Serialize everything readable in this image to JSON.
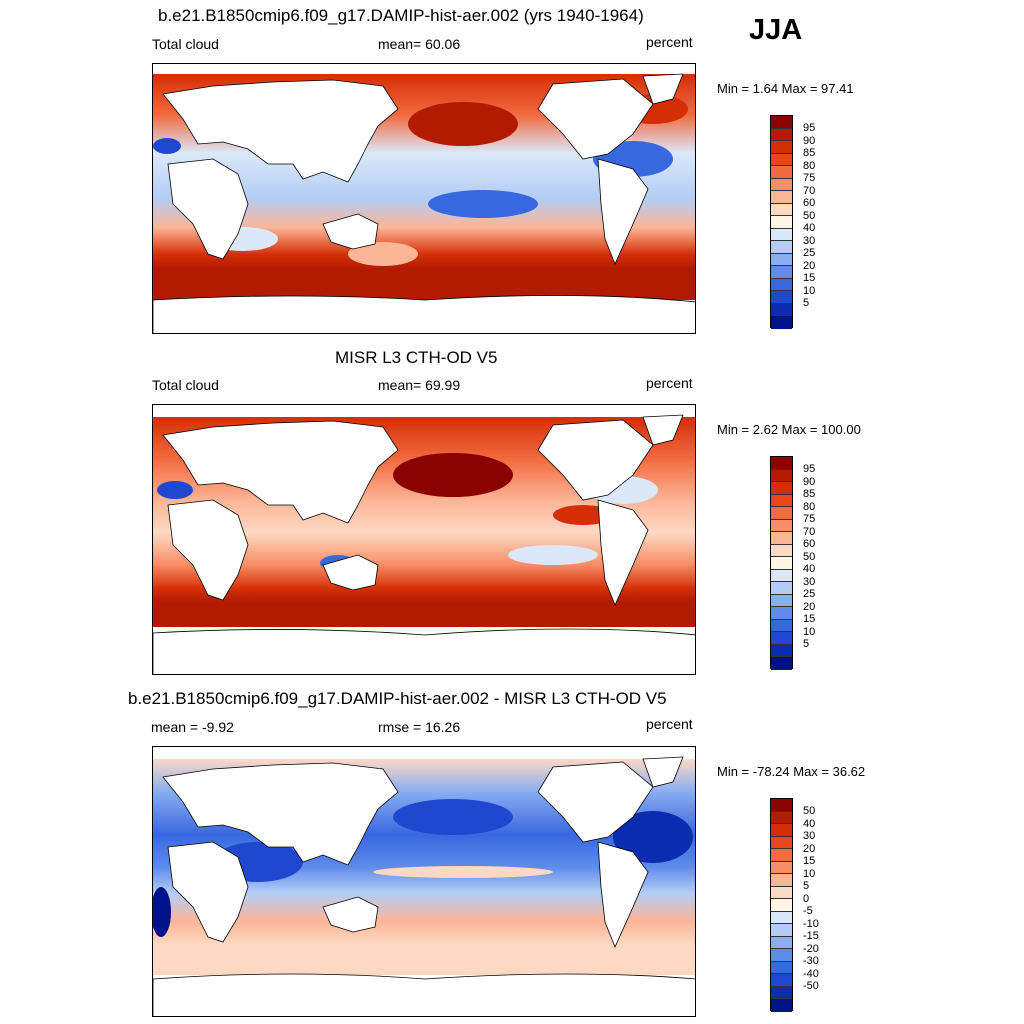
{
  "season": "JJA",
  "panels": [
    {
      "title": "b.e21.B1850cmip6.f09_g17.DAMIP-hist-aer.002 (yrs 1940-1964)",
      "left_label": "Total cloud",
      "center_label": "mean=  60.06",
      "right_label": "percent",
      "minmax": "Min =   1.64 Max =  97.41",
      "colorbar_labels": [
        "95",
        "90",
        "85",
        "80",
        "75",
        "70",
        "60",
        "50",
        "40",
        "30",
        "25",
        "20",
        "15",
        "10",
        "5"
      ],
      "colorbar_colors": [
        "#8b0000",
        "#b31b00",
        "#d42e06",
        "#e8461b",
        "#f26a3f",
        "#f88f67",
        "#fcb597",
        "#fdd9c4",
        "#fff6e8",
        "#dbe8fa",
        "#b3cdf5",
        "#8aaef0",
        "#5f8beb",
        "#3868e0",
        "#1f48cf",
        "#0a2cb0",
        "#00128a"
      ]
    },
    {
      "title": "MISR L3 CTH-OD V5",
      "left_label": "Total cloud",
      "center_label": "mean=  69.99",
      "right_label": "percent",
      "minmax": "Min =   2.62 Max = 100.00",
      "colorbar_labels": [
        "95",
        "90",
        "85",
        "80",
        "75",
        "70",
        "60",
        "50",
        "40",
        "30",
        "25",
        "20",
        "15",
        "10",
        "5"
      ],
      "colorbar_colors": [
        "#8b0000",
        "#b31b00",
        "#d42e06",
        "#e8461b",
        "#f26a3f",
        "#f88f67",
        "#fcb597",
        "#fdd9c4",
        "#fff6e8",
        "#dbe8fa",
        "#b3cdf5",
        "#8aaef0",
        "#5f8beb",
        "#3868e0",
        "#1f48cf",
        "#0a2cb0",
        "#00128a"
      ]
    },
    {
      "title": "b.e21.B1850cmip6.f09_g17.DAMIP-hist-aer.002 - MISR L3 CTH-OD V5",
      "left_label": "mean =  -9.92",
      "center_label": "rmse =  16.26",
      "right_label": "percent",
      "minmax": "Min = -78.24 Max =  36.62",
      "colorbar_labels": [
        "50",
        "40",
        "30",
        "20",
        "15",
        "10",
        "5",
        "0",
        "-5",
        "-10",
        "-15",
        "-20",
        "-30",
        "-40",
        "-50"
      ],
      "colorbar_colors": [
        "#8b0000",
        "#b31b00",
        "#d42e06",
        "#e8461b",
        "#f26a3f",
        "#f88f67",
        "#fcb597",
        "#fdd9c4",
        "#fff6e8",
        "#dbe8fa",
        "#b3cdf5",
        "#8aaef0",
        "#5f8beb",
        "#3868e0",
        "#1f48cf",
        "#0a2cb0",
        "#00128a"
      ]
    }
  ]
}
